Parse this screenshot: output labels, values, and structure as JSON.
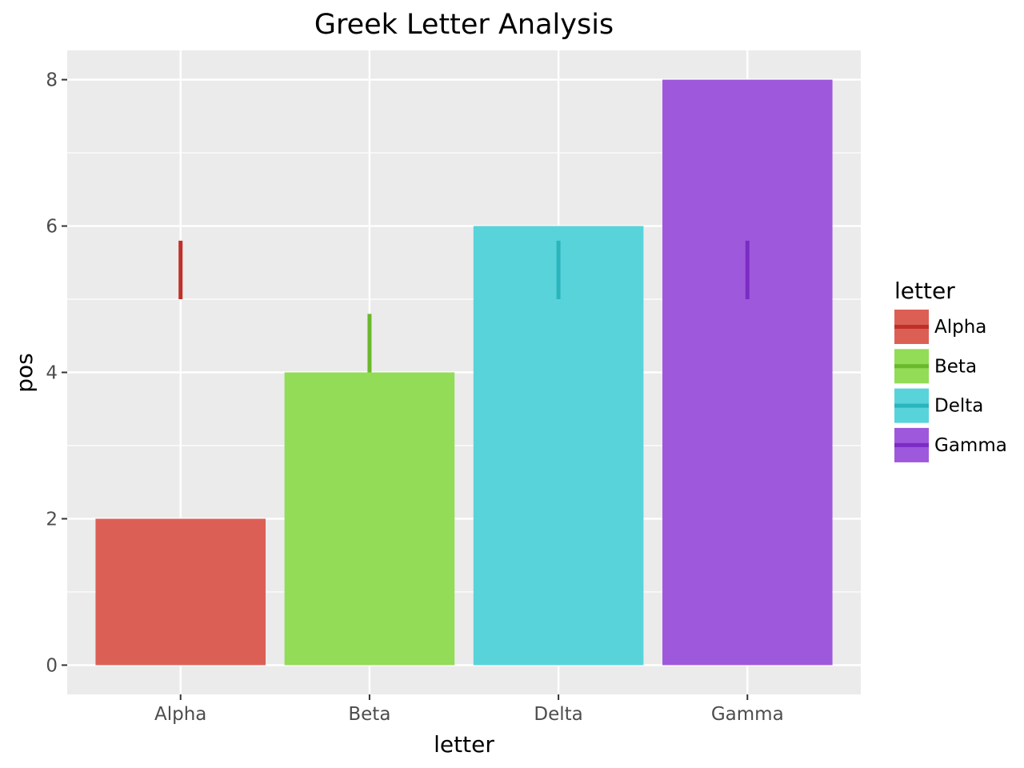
{
  "chart_data": {
    "type": "bar",
    "title": "Greek Letter Analysis",
    "xlabel": "letter",
    "ylabel": "pos",
    "ylim": [
      -0.4,
      8.4
    ],
    "yticks": [
      0,
      2,
      4,
      6,
      8
    ],
    "grid": true,
    "legend": {
      "title": "letter",
      "placement": "right",
      "entries": [
        "Alpha",
        "Beta",
        "Delta",
        "Gamma"
      ]
    },
    "categories": [
      "Alpha",
      "Beta",
      "Delta",
      "Gamma"
    ],
    "values": [
      2,
      4,
      6,
      8
    ],
    "segments": [
      {
        "category": "Alpha",
        "y_start": 5,
        "y_end": 5.8
      },
      {
        "category": "Beta",
        "y_start": 4,
        "y_end": 4.8
      },
      {
        "category": "Delta",
        "y_start": 5,
        "y_end": 5.8
      },
      {
        "category": "Gamma",
        "y_start": 5,
        "y_end": 5.8
      }
    ],
    "colors": {
      "fill": [
        "#dc5f56",
        "#93dc57",
        "#58d3da",
        "#9e58dc"
      ],
      "line": [
        "#c0302a",
        "#6ab82b",
        "#2ab5bd",
        "#7b2cc4"
      ]
    }
  }
}
